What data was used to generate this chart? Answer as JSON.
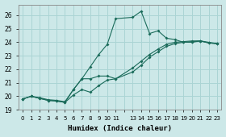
{
  "xlabel": "Humidex (Indice chaleur)",
  "background_color": "#cce8e8",
  "grid_color": "#aad4d4",
  "line_color": "#1a6b5a",
  "xlim": [
    -0.5,
    23.5
  ],
  "ylim": [
    19,
    26.8
  ],
  "yticks": [
    19,
    20,
    21,
    22,
    23,
    24,
    25,
    26
  ],
  "s1_x": [
    0,
    1,
    2,
    3,
    4,
    5,
    6,
    7,
    8,
    9,
    10,
    11,
    13,
    14,
    15,
    16,
    17,
    18,
    19,
    20,
    21,
    23
  ],
  "s1_y": [
    19.8,
    20.0,
    19.9,
    19.75,
    19.7,
    19.6,
    20.5,
    21.3,
    22.2,
    23.1,
    23.85,
    25.75,
    25.85,
    26.3,
    24.65,
    24.85,
    24.3,
    24.2,
    24.0,
    24.0,
    24.1,
    23.9
  ],
  "s2_x": [
    0,
    1,
    2,
    3,
    4,
    5,
    6,
    7,
    8,
    9,
    10,
    11,
    13,
    14,
    15,
    16,
    17,
    18,
    19,
    20,
    21,
    22,
    23
  ],
  "s2_y": [
    19.8,
    20.0,
    19.85,
    19.7,
    19.65,
    19.55,
    20.1,
    20.5,
    20.3,
    20.8,
    21.2,
    21.3,
    21.8,
    22.3,
    22.9,
    23.3,
    23.7,
    23.9,
    24.0,
    24.05,
    24.1,
    23.95,
    23.9
  ],
  "s3_x": [
    0,
    1,
    2,
    3,
    4,
    5,
    6,
    7,
    8,
    9,
    10,
    11,
    13,
    14,
    15,
    16,
    17,
    18,
    19,
    20,
    21,
    22,
    23
  ],
  "s3_y": [
    19.8,
    20.0,
    19.85,
    19.7,
    19.65,
    19.55,
    20.5,
    21.3,
    21.3,
    21.5,
    21.5,
    21.3,
    22.1,
    22.6,
    23.1,
    23.5,
    23.85,
    24.0,
    24.05,
    24.1,
    24.1,
    23.95,
    23.9
  ],
  "xtick_labels": [
    "0",
    "1",
    "2",
    "3",
    "4",
    "5",
    "6",
    "7",
    "8",
    "9",
    "10",
    "11",
    "",
    "13",
    "14",
    "15",
    "16",
    "17",
    "18",
    "19",
    "20",
    "21",
    "22",
    "23"
  ]
}
